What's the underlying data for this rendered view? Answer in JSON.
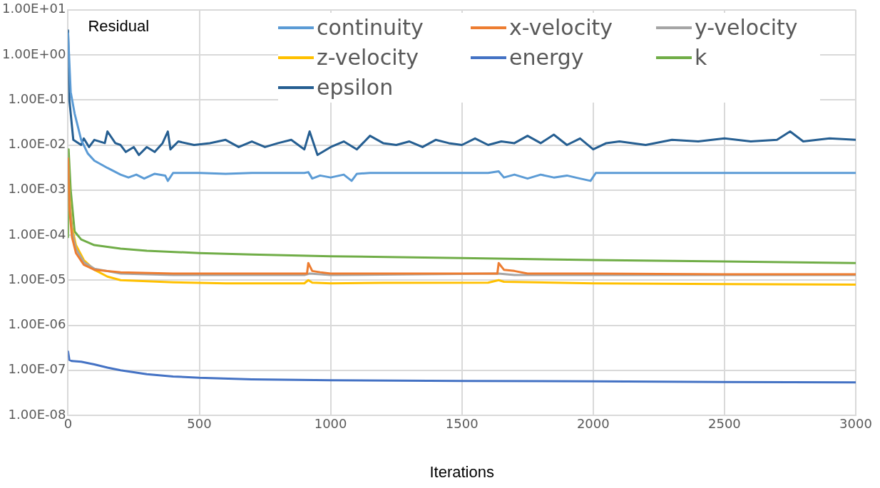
{
  "chart_data": {
    "type": "line",
    "xlabel": "Iterations",
    "ylabel": "Residual",
    "log": "y",
    "grid": true,
    "legend": "top right",
    "marker": "none",
    "line_style": "solid",
    "xlim": [
      0,
      3000
    ],
    "xticks": [
      0,
      500,
      1000,
      1500,
      2000,
      2500,
      3000
    ],
    "ylim": [
      1e-08,
      10
    ],
    "yticks": [
      {
        "value": 1e-08,
        "label": "1.00E-08"
      },
      {
        "value": 1e-07,
        "label": "1.00E-07"
      },
      {
        "value": 1e-06,
        "label": "1.00E-06"
      },
      {
        "value": 1e-05,
        "label": "1.00E-05"
      },
      {
        "value": 0.0001,
        "label": "1.00E-04"
      },
      {
        "value": 0.001,
        "label": "1.00E-03"
      },
      {
        "value": 0.01,
        "label": "1.00E-02"
      },
      {
        "value": 0.1,
        "label": "1.00E-01"
      },
      {
        "value": 1,
        "label": "1.00E+00"
      },
      {
        "value": 10,
        "label": "1.00E+01"
      }
    ],
    "series": [
      {
        "name": "continuity",
        "color": "#5b9bd5",
        "x": [
          0,
          10,
          25,
          50,
          75,
          100,
          150,
          200,
          230,
          260,
          290,
          330,
          370,
          380,
          400,
          500,
          600,
          700,
          800,
          900,
          915,
          930,
          960,
          1000,
          1050,
          1080,
          1100,
          1150,
          1200,
          1400,
          1600,
          1640,
          1660,
          1700,
          1750,
          1800,
          1850,
          1900,
          1950,
          1990,
          2010,
          2100,
          2300,
          2500,
          2700,
          2900,
          3000
        ],
        "values": [
          3,
          0.15,
          0.05,
          0.013,
          0.0065,
          0.0045,
          0.0031,
          0.0022,
          0.0019,
          0.0022,
          0.0018,
          0.0023,
          0.0021,
          0.0016,
          0.0024,
          0.0024,
          0.0023,
          0.0024,
          0.0024,
          0.0024,
          0.0025,
          0.0018,
          0.0021,
          0.0019,
          0.0022,
          0.0016,
          0.0023,
          0.0024,
          0.0024,
          0.0024,
          0.0024,
          0.0026,
          0.0019,
          0.0022,
          0.0018,
          0.0022,
          0.0019,
          0.0021,
          0.0018,
          0.0016,
          0.0024,
          0.0024,
          0.0024,
          0.0024,
          0.0024,
          0.0024,
          0.0024
        ]
      },
      {
        "name": "x-velocity",
        "color": "#ed7d31",
        "x": [
          0,
          5,
          15,
          30,
          60,
          100,
          200,
          400,
          600,
          910,
          915,
          930,
          960,
          1000,
          1200,
          1400,
          1635,
          1640,
          1660,
          1700,
          1750,
          2000,
          2500,
          3000
        ],
        "values": [
          0.005,
          0.0004,
          9e-05,
          4e-05,
          2.2e-05,
          1.7e-05,
          1.5e-05,
          1.4e-05,
          1.4e-05,
          1.4e-05,
          2.4e-05,
          1.6e-05,
          1.5e-05,
          1.4e-05,
          1.4e-05,
          1.4e-05,
          1.4e-05,
          2.4e-05,
          1.7e-05,
          1.6e-05,
          1.4e-05,
          1.4e-05,
          1.35e-05,
          1.35e-05
        ]
      },
      {
        "name": "y-velocity",
        "color": "#a5a5a5",
        "x": [
          0,
          5,
          15,
          30,
          60,
          100,
          200,
          400,
          600,
          900,
          920,
          1000,
          1640,
          1700,
          2000,
          2500,
          3000
        ],
        "values": [
          0.005,
          0.0006,
          0.00012,
          5e-05,
          2.5e-05,
          1.8e-05,
          1.4e-05,
          1.3e-05,
          1.3e-05,
          1.3e-05,
          1.4e-05,
          1.3e-05,
          1.4e-05,
          1.3e-05,
          1.3e-05,
          1.3e-05,
          1.3e-05
        ]
      },
      {
        "name": "z-velocity",
        "color": "#ffc000",
        "x": [
          0,
          5,
          15,
          30,
          60,
          100,
          150,
          200,
          300,
          400,
          600,
          900,
          915,
          930,
          1000,
          1200,
          1600,
          1640,
          1660,
          2000,
          2500,
          3000
        ],
        "values": [
          0.005,
          0.0008,
          0.00015,
          6e-05,
          2.8e-05,
          1.7e-05,
          1.2e-05,
          1e-05,
          9.5e-06,
          9e-06,
          8.5e-06,
          8.5e-06,
          1e-05,
          8.8e-06,
          8.5e-06,
          8.7e-06,
          8.8e-06,
          1e-05,
          9.2e-06,
          8.5e-06,
          8.2e-06,
          8e-06
        ]
      },
      {
        "name": "energy",
        "color": "#4472c4",
        "x": [
          0,
          5,
          15,
          50,
          100,
          150,
          200,
          300,
          400,
          500,
          700,
          1000,
          1500,
          2000,
          2500,
          3000
        ],
        "values": [
          2.6e-07,
          1.7e-07,
          1.6e-07,
          1.55e-07,
          1.35e-07,
          1.15e-07,
          1e-07,
          8.2e-08,
          7.3e-08,
          6.8e-08,
          6.3e-08,
          6e-08,
          5.8e-08,
          5.7e-08,
          5.5e-08,
          5.4e-08
        ]
      },
      {
        "name": "k",
        "color": "#70ad47",
        "x": [
          0,
          2,
          10,
          25,
          50,
          100,
          200,
          300,
          500,
          700,
          1000,
          1500,
          2000,
          2500,
          3000
        ],
        "values": [
          9e-05,
          0.008,
          0.001,
          0.00012,
          8e-05,
          6e-05,
          5e-05,
          4.5e-05,
          4e-05,
          3.7e-05,
          3.4e-05,
          3.1e-05,
          2.8e-05,
          2.6e-05,
          2.4e-05
        ]
      },
      {
        "name": "epsilon",
        "color": "#255e91",
        "x": [
          0,
          5,
          20,
          50,
          60,
          80,
          100,
          140,
          150,
          180,
          200,
          220,
          250,
          270,
          300,
          330,
          360,
          380,
          390,
          420,
          480,
          540,
          600,
          650,
          700,
          750,
          800,
          850,
          900,
          920,
          950,
          1000,
          1050,
          1100,
          1150,
          1200,
          1250,
          1300,
          1350,
          1400,
          1450,
          1500,
          1550,
          1600,
          1650,
          1700,
          1750,
          1800,
          1850,
          1900,
          1950,
          2000,
          2050,
          2100,
          2200,
          2300,
          2400,
          2500,
          2600,
          2700,
          2750,
          2800,
          2900,
          3000
        ],
        "values": [
          3.5,
          0.1,
          0.013,
          0.01,
          0.014,
          0.009,
          0.013,
          0.011,
          0.02,
          0.011,
          0.01,
          0.007,
          0.009,
          0.006,
          0.009,
          0.007,
          0.011,
          0.02,
          0.008,
          0.012,
          0.01,
          0.011,
          0.013,
          0.009,
          0.012,
          0.009,
          0.011,
          0.013,
          0.008,
          0.02,
          0.006,
          0.009,
          0.012,
          0.008,
          0.016,
          0.011,
          0.01,
          0.012,
          0.009,
          0.013,
          0.011,
          0.01,
          0.014,
          0.01,
          0.012,
          0.011,
          0.016,
          0.011,
          0.017,
          0.01,
          0.014,
          0.008,
          0.011,
          0.012,
          0.01,
          0.013,
          0.012,
          0.014,
          0.012,
          0.013,
          0.02,
          0.012,
          0.014,
          0.013
        ]
      }
    ]
  }
}
